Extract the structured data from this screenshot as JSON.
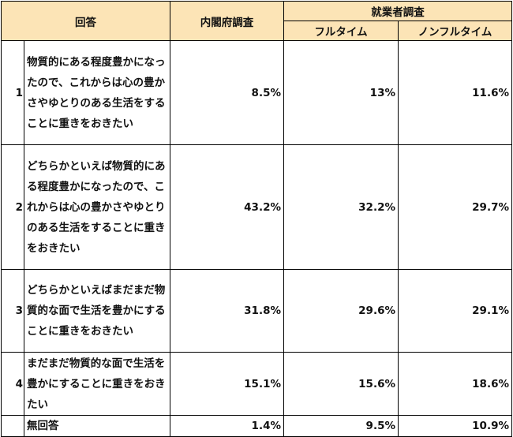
{
  "header": {
    "answer": "回答",
    "cabinet_survey": "内閣府調査",
    "worker_survey": "就業者調査",
    "full_time": "フルタイム",
    "non_full_time": "ノンフルタイム"
  },
  "rows": [
    {
      "index": "1",
      "answer": "物質的にある程度豊かになったので、これからは心の豊かさやゆとりのある生活をすることに重きをおきたい",
      "cabinet": "8.5%",
      "full_time": "13%",
      "non_full_time": "11.6%"
    },
    {
      "index": "2",
      "answer": "どちらかといえば物質的にある程度豊かになったので、これからは心の豊かさやゆとりのある生活をすることに重きをおきたい",
      "cabinet": "43.2%",
      "full_time": "32.2%",
      "non_full_time": "29.7%"
    },
    {
      "index": "3",
      "answer": "どちらかといえばまだまだ物質的な面で生活を豊かにすることに重きをおきたい",
      "cabinet": "31.8%",
      "full_time": "29.6%",
      "non_full_time": "29.1%"
    },
    {
      "index": "4",
      "answer": "まだまだ物質的な面で生活を豊かにすることに重きをおきたい",
      "cabinet": "15.1%",
      "full_time": "15.6%",
      "non_full_time": "18.6%"
    },
    {
      "index": "",
      "answer": "無回答",
      "cabinet": "1.4%",
      "full_time": "9.5%",
      "non_full_time": "10.9%"
    }
  ]
}
